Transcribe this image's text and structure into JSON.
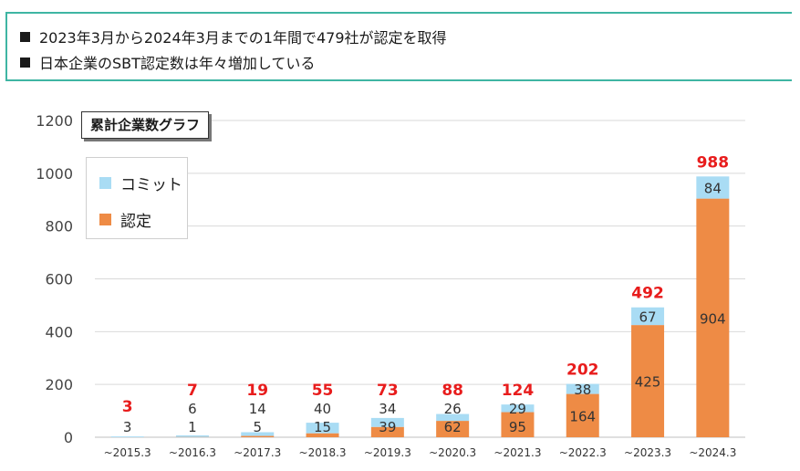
{
  "bullets": [
    "2023年3月から2024年3月までの1年間で479社が認定を取得",
    "日本企業のSBT認定数は年々増加している"
  ],
  "colors": {
    "commit": "#a9dcf4",
    "certified": "#ee8b45",
    "total_label": "#e81c1c",
    "frame": "#3fb5a3"
  },
  "chart_data": {
    "type": "bar",
    "stacked": true,
    "title": "累計企業数グラフ",
    "categories": [
      "~2015.3",
      "~2016.3",
      "~2017.3",
      "~2018.3",
      "~2019.3",
      "~2020.3",
      "~2021.3",
      "~2022.3",
      "~2023.3",
      "~2024.3"
    ],
    "series": [
      {
        "name": "認定",
        "values": [
          0,
          1,
          5,
          15,
          39,
          62,
          95,
          164,
          425,
          904
        ]
      },
      {
        "name": "コミット",
        "values": [
          3,
          6,
          14,
          40,
          34,
          26,
          29,
          38,
          67,
          84
        ]
      }
    ],
    "totals": [
      3,
      7,
      19,
      55,
      73,
      88,
      124,
      202,
      492,
      988
    ],
    "ylim": [
      0,
      1200
    ],
    "yticks": [
      0,
      200,
      400,
      600,
      800,
      1000,
      1200
    ],
    "grid": true,
    "legend_position": "top-left"
  }
}
